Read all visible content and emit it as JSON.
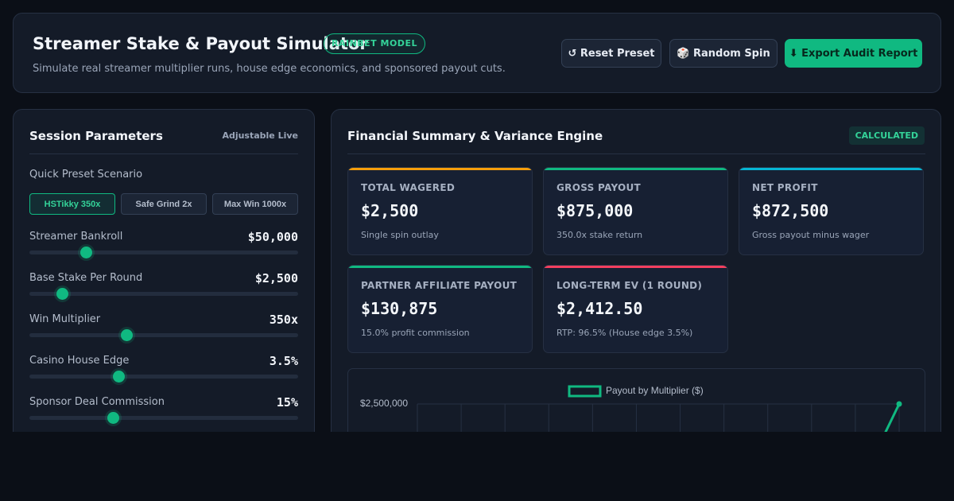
{
  "header": {
    "title": "Streamer Stake & Payout Simulator",
    "badge": "RAINBET MODEL",
    "subtitle": "Simulate real streamer multiplier runs, house edge economics, and sponsored payout cuts.",
    "buttons": {
      "reset": {
        "icon": "reset-icon",
        "label": "↺ Reset Preset"
      },
      "random": {
        "icon": "dice-icon",
        "label": "🎲 Random Spin"
      },
      "export": {
        "icon": "download-icon",
        "label": "⬇ Export Audit Report"
      }
    }
  },
  "session": {
    "title": "Session Parameters",
    "tag": "Adjustable Live",
    "preset_label": "Quick Preset Scenario",
    "presets": [
      {
        "label": "HSTikky 350x",
        "active": true
      },
      {
        "label": "Safe Grind 2x",
        "active": false
      },
      {
        "label": "Max Win 1000x",
        "active": false
      }
    ],
    "params": [
      {
        "label": "Streamer Bankroll",
        "value": "$50,000",
        "level": 0.21
      },
      {
        "label": "Base Stake Per Round",
        "value": "$2,500",
        "level": 0.12
      },
      {
        "label": "Win Multiplier",
        "value": "350x",
        "level": 0.36
      },
      {
        "label": "Casino House Edge",
        "value": "3.5%",
        "level": 0.33
      },
      {
        "label": "Sponsor Deal Commission",
        "value": "15%",
        "level": 0.31
      }
    ]
  },
  "summary": {
    "title": "Financial Summary & Variance Engine",
    "tag": "CALCULATED",
    "cards": [
      {
        "label": "TOTAL WAGERED",
        "value": "$2,500",
        "sub": "Single spin outlay",
        "color": "#f59e0b"
      },
      {
        "label": "GROSS PAYOUT",
        "value": "$875,000",
        "sub": "350.0x stake return",
        "color": "#10b981"
      },
      {
        "label": "NET PROFIT",
        "value": "$872,500",
        "sub": "Gross payout minus wager",
        "color": "#06b6d4"
      },
      {
        "label": "PARTNER AFFILIATE PAYOUT",
        "value": "$130,875",
        "sub": "15.0% profit commission",
        "color": "#10b981"
      },
      {
        "label": "LONG-TERM EV (1 ROUND)",
        "value": "$2,412.50",
        "sub": "RTP: 96.5% (House edge 3.5%)",
        "color": "#f43f5e"
      }
    ]
  },
  "colors": {
    "accent": "#10b981",
    "background": "#0b0f17",
    "panel": "#141b28"
  },
  "chart_data": {
    "type": "line",
    "title": "",
    "legend": [
      "Payout by Multiplier ($)"
    ],
    "legend_position": "top-center",
    "ylabel": "",
    "xlabel": "",
    "y_tick_labels": [
      "$2,500,000"
    ],
    "ylim": [
      0,
      2500000
    ],
    "grid": true,
    "series": [
      {
        "name": "Payout by Multiplier ($)",
        "color": "#10b981",
        "values": [
          2000000,
          2500000
        ]
      }
    ]
  }
}
